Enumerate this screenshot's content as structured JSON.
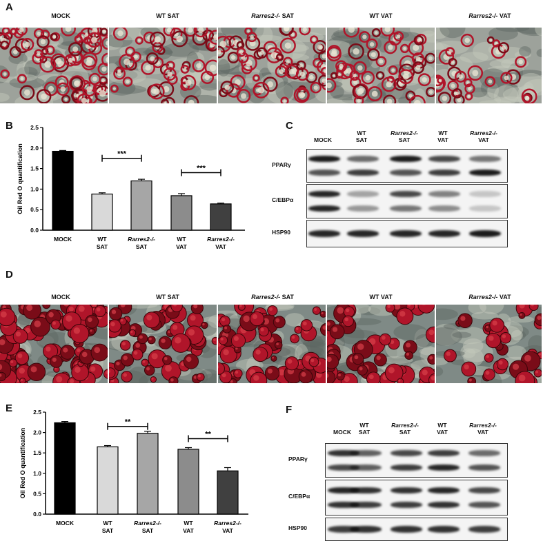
{
  "panels": {
    "A": {
      "letter": "A",
      "labels": [
        {
          "pre": "MOCK",
          "italic": "",
          "post": ""
        },
        {
          "pre": "WT SAT",
          "italic": "",
          "post": ""
        },
        {
          "pre": "",
          "italic": "Rarres2-/-",
          "post": " SAT"
        },
        {
          "pre": "WT  VAT",
          "italic": "",
          "post": ""
        },
        {
          "pre": "",
          "italic": "Rarres2-/-",
          "post": " VAT"
        }
      ]
    },
    "B": {
      "letter": "B"
    },
    "C": {
      "letter": "C",
      "columns": [
        "MOCK",
        "WT\nSAT",
        "Rarres2-/-\nSAT",
        "WT\nVAT",
        "Rarres2-/-\nVAT"
      ],
      "rows": [
        "PPARγ",
        "C/EBPα",
        "HSP90"
      ]
    },
    "D": {
      "letter": "D",
      "labels": [
        {
          "pre": "MOCK",
          "italic": "",
          "post": ""
        },
        {
          "pre": "WT SAT",
          "italic": "",
          "post": ""
        },
        {
          "pre": "",
          "italic": "Rarres2-/-",
          "post": " SAT"
        },
        {
          "pre": "WT  VAT",
          "italic": "",
          "post": ""
        },
        {
          "pre": "",
          "italic": "Rarres2-/-",
          "post": " VAT"
        }
      ]
    },
    "E": {
      "letter": "E"
    },
    "F": {
      "letter": "F",
      "columns": [
        "MOCK",
        "WT\nSAT",
        "Rarres2-/-\nSAT",
        "WT\nVAT",
        "Rarres2-/-\nVAT"
      ],
      "rows": [
        "PPARγ",
        "C/EBPα",
        "HSP90"
      ]
    }
  },
  "colors": {
    "stain_red": "#b0152a",
    "stain_dark_red": "#7a0c18",
    "background_gray": "#8d948f",
    "bar_colors": [
      "#000000",
      "#d9d9d9",
      "#a6a6a6",
      "#8c8c8c",
      "#404040"
    ]
  },
  "chart_data": [
    {
      "type": "bar",
      "panel": "B",
      "categories": [
        "MOCK",
        "WT\nSAT",
        "Rarres2-/-\nSAT",
        "WT\nVAT",
        "Rarres2-/-\nVAT"
      ],
      "values": [
        1.92,
        0.88,
        1.2,
        0.84,
        0.64
      ],
      "errors": [
        0.02,
        0.03,
        0.04,
        0.05,
        0.02
      ],
      "ylabel": "Oil Red O quantification",
      "ylim": [
        0,
        2.5
      ],
      "yticks": [
        "0.0",
        "0.5",
        "1.0",
        "1.5",
        "2.0",
        "2.5"
      ],
      "significance": [
        {
          "from": 1,
          "to": 2,
          "label": "***",
          "level": 1.75
        },
        {
          "from": 3,
          "to": 4,
          "label": "***",
          "level": 1.4
        }
      ]
    },
    {
      "type": "bar",
      "panel": "E",
      "categories": [
        "MOCK",
        "WT\nSAT",
        "Rarres2-/-\nSAT",
        "WT\nVAT",
        "Rarres2-/-\nVAT"
      ],
      "values": [
        2.24,
        1.65,
        1.98,
        1.59,
        1.06
      ],
      "errors": [
        0.03,
        0.03,
        0.05,
        0.04,
        0.08
      ],
      "ylabel": "Oil Red O quantification",
      "ylim": [
        0,
        2.5
      ],
      "yticks": [
        "0.0",
        "0.5",
        "1.0",
        "1.5",
        "2.0",
        "2.5"
      ],
      "significance": [
        {
          "from": 1,
          "to": 2,
          "label": "**",
          "level": 2.15
        },
        {
          "from": 3,
          "to": 4,
          "label": "**",
          "level": 1.85
        }
      ]
    }
  ]
}
